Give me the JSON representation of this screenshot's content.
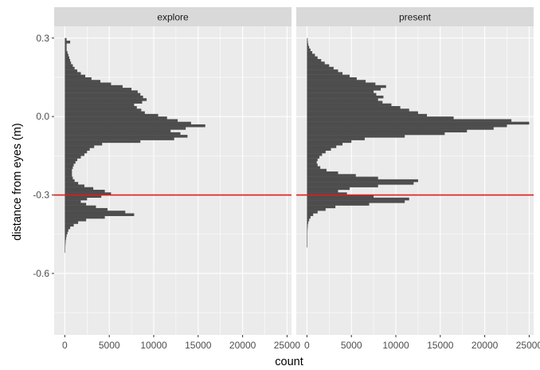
{
  "chart_data": {
    "type": "bar",
    "orientation": "horizontal histogram",
    "xlabel": "count",
    "ylabel": "distance from eyes (m)",
    "xlim": [
      -1200,
      25500
    ],
    "ylim": [
      -0.835,
      0.345
    ],
    "x_ticks": [
      0,
      5000,
      10000,
      15000,
      20000,
      25000
    ],
    "x_tick_labels": [
      "0",
      "5000",
      "10000",
      "15000",
      "20000",
      "25000"
    ],
    "y_ticks": [
      0.3,
      0.0,
      -0.3,
      -0.6
    ],
    "y_tick_labels": [
      "0.3",
      "0.0",
      "-0.3",
      "-0.6"
    ],
    "grid": true,
    "bar_color": "#4d4d4d",
    "panel_background": "#ebebeb",
    "strip_background": "#d9d9d9",
    "reference_line": {
      "y": -0.3,
      "color": "#e41a1c"
    },
    "bin_edges_start": 0.3,
    "bin_width": 0.01,
    "facets": [
      {
        "name": "explore",
        "counts": [
          200,
          600,
          200,
          200,
          200,
          300,
          400,
          500,
          600,
          700,
          900,
          1100,
          1400,
          1800,
          2300,
          3000,
          4000,
          5200,
          6500,
          7500,
          8200,
          8500,
          8800,
          9200,
          8700,
          7800,
          8100,
          8600,
          9000,
          10500,
          11500,
          12700,
          14200,
          15800,
          13600,
          11900,
          13000,
          13800,
          12300,
          8500,
          4200,
          3300,
          2800,
          2500,
          2200,
          1800,
          1400,
          1200,
          1000,
          900,
          800,
          800,
          800,
          900,
          1100,
          1500,
          2200,
          3200,
          4500,
          5200,
          4100,
          2500,
          1800,
          2400,
          3500,
          4800,
          6800,
          7800,
          4500,
          2400,
          1500,
          1000,
          600,
          400,
          300,
          200,
          150,
          100,
          80,
          60,
          40,
          30
        ]
      },
      {
        "name": "present",
        "counts": [
          80,
          100,
          150,
          250,
          400,
          600,
          900,
          1200,
          1600,
          2000,
          2500,
          3000,
          3500,
          4000,
          4800,
          5600,
          6600,
          7700,
          8900,
          8300,
          7500,
          7800,
          8600,
          8000,
          8500,
          9500,
          10500,
          11500,
          12500,
          13500,
          16500,
          23000,
          25000,
          22500,
          21000,
          18000,
          15500,
          11000,
          6500,
          5000,
          4000,
          3300,
          2700,
          2100,
          1700,
          1400,
          1200,
          1100,
          1200,
          1500,
          2200,
          3500,
          5500,
          8000,
          12500,
          12000,
          8000,
          4800,
          3500,
          4500,
          7500,
          11500,
          11000,
          7000,
          3200,
          2100,
          1200,
          700,
          400,
          250,
          150,
          100,
          80,
          60,
          40,
          30,
          20,
          15,
          10,
          8
        ]
      }
    ]
  }
}
